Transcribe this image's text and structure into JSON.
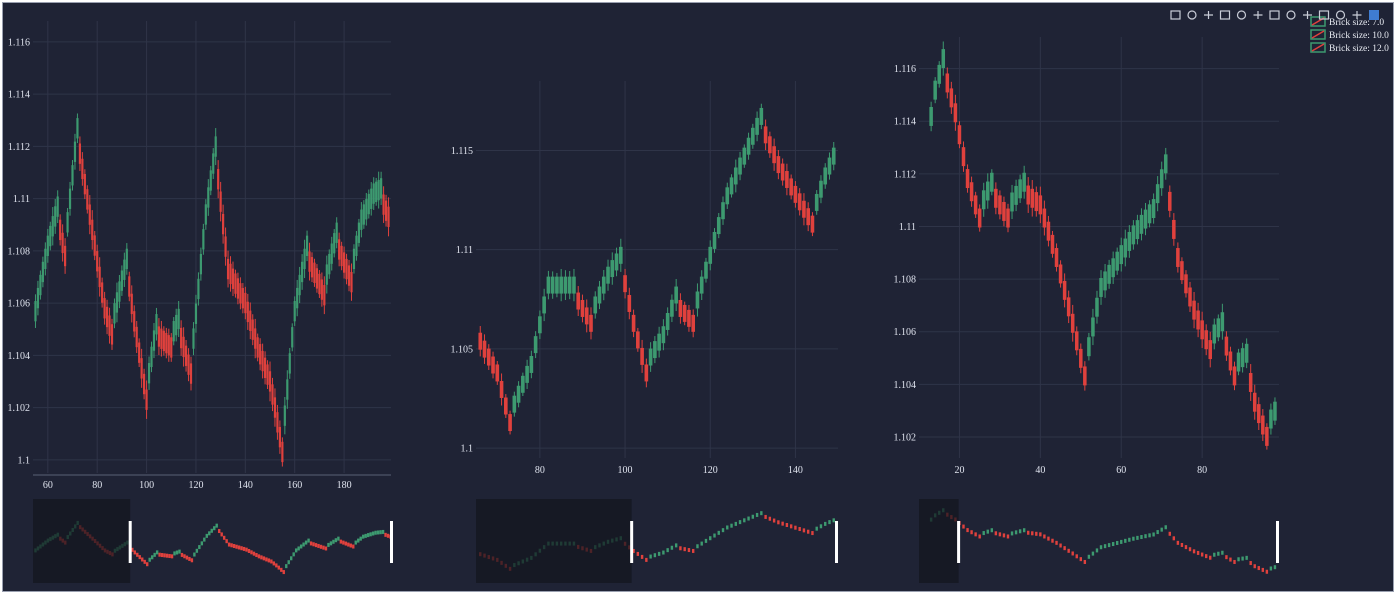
{
  "colors": {
    "background": "#1f2335",
    "increasing": "#3d9a70",
    "decreasing": "#e0413d",
    "grid": "#2f3448",
    "tick_text": "#dfe3ee",
    "slider_mask": "#14161f",
    "slider_handle": "#ffffff"
  },
  "modebar": {
    "icons": [
      "camera-icon",
      "zoom-icon",
      "pan-icon",
      "box-select-icon",
      "lasso-icon",
      "zoom-in-icon",
      "zoom-out-icon",
      "autoscale-icon",
      "reset-axes-icon",
      "spike-lines-icon",
      "hover-closest-icon",
      "hover-compare-icon",
      "plotly-logo-icon"
    ]
  },
  "chart_data": [
    {
      "type": "renko",
      "panel": "left",
      "brick_size": 7.0,
      "xlim": [
        54,
        199
      ],
      "ylim": [
        1.0995,
        1.1168
      ],
      "xticks": [
        "60",
        "80",
        "100",
        "120",
        "140",
        "160",
        "180"
      ],
      "xtick_values": [
        60,
        80,
        100,
        120,
        140,
        160,
        180
      ],
      "yticks": [
        "1.1",
        "1.102",
        "1.104",
        "1.106",
        "1.108",
        "1.11",
        "1.112",
        "1.114",
        "1.116"
      ],
      "ytick_values": [
        1.1,
        1.102,
        1.104,
        1.106,
        1.108,
        1.11,
        1.112,
        1.114,
        1.116
      ],
      "x_axis_line": true,
      "path": [
        [
          54,
          1.105
        ],
        [
          60,
          1.108
        ],
        [
          64,
          1.1095
        ],
        [
          67,
          1.108
        ],
        [
          72,
          1.1125
        ],
        [
          78,
          1.109
        ],
        [
          83,
          1.106
        ],
        [
          86,
          1.105
        ],
        [
          92,
          1.1075
        ],
        [
          95,
          1.1055
        ],
        [
          100,
          1.1025
        ],
        [
          104,
          1.105
        ],
        [
          110,
          1.1045
        ],
        [
          113,
          1.1052
        ],
        [
          118,
          1.1035
        ],
        [
          124,
          1.1092
        ],
        [
          128,
          1.1118
        ],
        [
          133,
          1.1075
        ],
        [
          140,
          1.1062
        ],
        [
          145,
          1.1045
        ],
        [
          150,
          1.1032
        ],
        [
          152,
          1.1022
        ],
        [
          155,
          1.1005
        ],
        [
          160,
          1.1055
        ],
        [
          165,
          1.108
        ],
        [
          172,
          1.1065
        ],
        [
          177,
          1.1085
        ],
        [
          183,
          1.107
        ],
        [
          187,
          1.109
        ],
        [
          192,
          1.11
        ],
        [
          195,
          1.1102
        ],
        [
          198,
          1.1095
        ]
      ],
      "slider_window": [
        0,
        0.27
      ]
    },
    {
      "type": "renko",
      "panel": "middle",
      "brick_size": 10.0,
      "xlim": [
        65,
        150
      ],
      "ylim": [
        1.0995,
        1.1185
      ],
      "xticks": [
        "80",
        "100",
        "120",
        "140"
      ],
      "xtick_values": [
        80,
        100,
        120,
        140
      ],
      "yticks": [
        "1.1",
        "1.105",
        "1.11",
        "1.115"
      ],
      "ytick_values": [
        1.1,
        1.105,
        1.11,
        1.115
      ],
      "x_axis_line": false,
      "path": [
        [
          65,
          1.106
        ],
        [
          70,
          1.104
        ],
        [
          73,
          1.1015
        ],
        [
          78,
          1.104
        ],
        [
          82,
          1.108
        ],
        [
          88,
          1.108
        ],
        [
          92,
          1.1065
        ],
        [
          96,
          1.1085
        ],
        [
          99,
          1.1095
        ],
        [
          102,
          1.1065
        ],
        [
          105,
          1.104
        ],
        [
          109,
          1.1055
        ],
        [
          112,
          1.1075
        ],
        [
          116,
          1.1065
        ],
        [
          120,
          1.1095
        ],
        [
          124,
          1.1125
        ],
        [
          128,
          1.1145
        ],
        [
          132,
          1.1165
        ],
        [
          136,
          1.1145
        ],
        [
          140,
          1.113
        ],
        [
          144,
          1.1115
        ],
        [
          147,
          1.1135
        ],
        [
          149,
          1.1145
        ]
      ],
      "slider_window": [
        0,
        0.43
      ]
    },
    {
      "type": "renko",
      "panel": "right",
      "brick_size": 12.0,
      "xlim": [
        10,
        99
      ],
      "ylim": [
        1.1012,
        1.1172
      ],
      "xticks": [
        "20",
        "40",
        "60",
        "80"
      ],
      "xtick_values": [
        20,
        40,
        60,
        80
      ],
      "yticks": [
        "1.102",
        "1.104",
        "1.106",
        "1.108",
        "1.11",
        "1.112",
        "1.114",
        "1.116"
      ],
      "ytick_values": [
        1.102,
        1.104,
        1.106,
        1.108,
        1.11,
        1.112,
        1.114,
        1.116
      ],
      "x_axis_line": false,
      "path": [
        [
          12,
          1.113
        ],
        [
          14,
          1.115
        ],
        [
          16,
          1.1162
        ],
        [
          19,
          1.1145
        ],
        [
          22,
          1.112
        ],
        [
          25,
          1.1105
        ],
        [
          28,
          1.1115
        ],
        [
          32,
          1.1105
        ],
        [
          36,
          1.1115
        ],
        [
          40,
          1.111
        ],
        [
          44,
          1.109
        ],
        [
          48,
          1.1065
        ],
        [
          51,
          1.1045
        ],
        [
          55,
          1.1075
        ],
        [
          59,
          1.1085
        ],
        [
          63,
          1.1095
        ],
        [
          68,
          1.1105
        ],
        [
          71,
          1.1122
        ],
        [
          74,
          1.109
        ],
        [
          78,
          1.107
        ],
        [
          82,
          1.1055
        ],
        [
          85,
          1.1062
        ],
        [
          88,
          1.1045
        ],
        [
          91,
          1.105
        ],
        [
          93,
          1.1035
        ],
        [
          96,
          1.1022
        ],
        [
          98,
          1.1028
        ]
      ],
      "slider_window": [
        0,
        0.11
      ]
    }
  ],
  "legend": {
    "entries": [
      "Brick size: 7.0",
      "Brick size: 10.0",
      "Brick size: 12.0"
    ]
  }
}
